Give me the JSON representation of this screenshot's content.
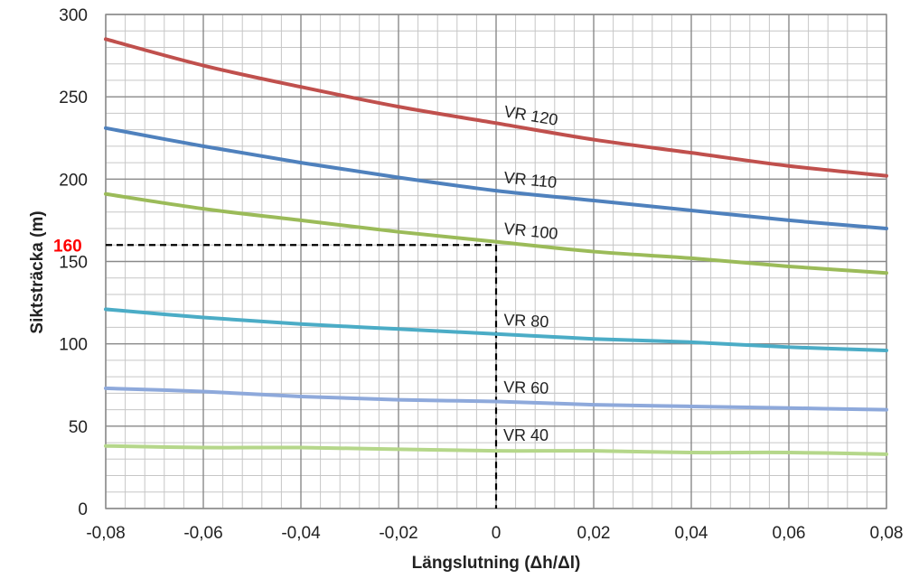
{
  "chart_data": {
    "type": "line",
    "title": "",
    "xlabel": "Längslutning (Δh/Δl)",
    "ylabel": "Siktsträcka (m)",
    "xlim": [
      -0.08,
      0.08
    ],
    "ylim": [
      0,
      300
    ],
    "x_ticks": [
      -0.08,
      -0.06,
      -0.04,
      -0.02,
      0,
      0.02,
      0.04,
      0.06,
      0.08
    ],
    "x_tick_labels": [
      "-0,08",
      "-0,06",
      "-0,04",
      "-0,02",
      "0",
      "0,02",
      "0,04",
      "0,06",
      "0,08"
    ],
    "y_ticks": [
      0,
      50,
      100,
      150,
      200,
      250,
      300
    ],
    "y_tick_labels": [
      "0",
      "50",
      "100",
      "150",
      "200",
      "250",
      "300"
    ],
    "grid": true,
    "x": [
      -0.08,
      -0.06,
      -0.04,
      -0.02,
      0,
      0.02,
      0.04,
      0.06,
      0.08
    ],
    "series": [
      {
        "name": "VR 120",
        "color": "#c0504d",
        "values": [
          285,
          269,
          256,
          244,
          234,
          224,
          216,
          208,
          202
        ]
      },
      {
        "name": "VR 110",
        "color": "#4f81bd",
        "values": [
          231,
          220,
          210,
          201,
          193,
          187,
          181,
          175,
          170
        ]
      },
      {
        "name": "VR 100",
        "color": "#9bbb59",
        "values": [
          191,
          182,
          175,
          168,
          162,
          156,
          152,
          147,
          143
        ]
      },
      {
        "name": "VR 80",
        "color": "#4bacc6",
        "values": [
          121,
          116,
          112,
          109,
          106,
          103,
          101,
          98,
          96
        ]
      },
      {
        "name": "VR 60",
        "color": "#8ea9db",
        "values": [
          73,
          71,
          68,
          66,
          65,
          63,
          62,
          61,
          60
        ]
      },
      {
        "name": "VR 40",
        "color": "#b5d78a",
        "values": [
          38,
          37,
          37,
          36,
          35,
          35,
          34,
          34,
          33
        ]
      }
    ],
    "annotations": [
      {
        "label": "160",
        "color": "#ff0000",
        "x": 0,
        "y": 160,
        "line_style": "dashed"
      }
    ]
  }
}
